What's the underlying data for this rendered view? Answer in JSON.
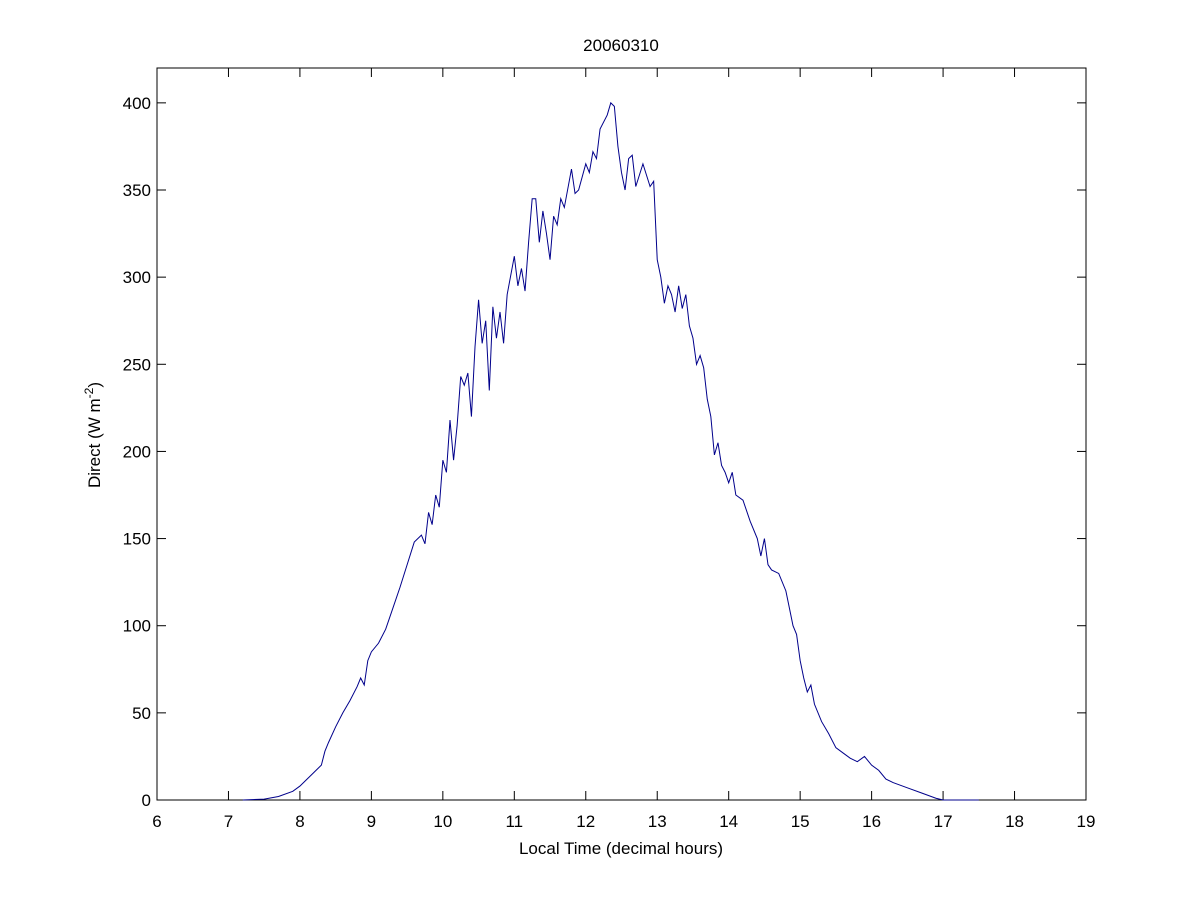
{
  "chart_data": {
    "type": "line",
    "title": "20060310",
    "xlabel": "Local Time (decimal hours)",
    "ylabel": {
      "base": "Direct (W m",
      "superscript": "-2",
      "suffix": ")"
    },
    "xlim": [
      6,
      19
    ],
    "xticks": [
      6,
      7,
      8,
      9,
      10,
      11,
      12,
      13,
      14,
      15,
      16,
      17,
      18,
      19
    ],
    "ylim": [
      0,
      420
    ],
    "yticks": [
      0,
      50,
      100,
      150,
      200,
      250,
      300,
      350,
      400
    ],
    "grid": false,
    "series": [
      {
        "color": "#00008b",
        "x": [
          7.2,
          7.5,
          7.7,
          7.9,
          8.0,
          8.1,
          8.2,
          8.3,
          8.35,
          8.4,
          8.5,
          8.6,
          8.7,
          8.8,
          8.85,
          8.9,
          8.95,
          9.0,
          9.1,
          9.2,
          9.3,
          9.4,
          9.5,
          9.6,
          9.7,
          9.75,
          9.8,
          9.85,
          9.9,
          9.95,
          10.0,
          10.05,
          10.1,
          10.15,
          10.2,
          10.25,
          10.3,
          10.35,
          10.4,
          10.45,
          10.5,
          10.55,
          10.6,
          10.65,
          10.7,
          10.75,
          10.8,
          10.85,
          10.9,
          11.0,
          11.05,
          11.1,
          11.15,
          11.2,
          11.25,
          11.3,
          11.35,
          11.4,
          11.45,
          11.5,
          11.55,
          11.6,
          11.65,
          11.7,
          11.8,
          11.85,
          11.9,
          12.0,
          12.05,
          12.1,
          12.15,
          12.2,
          12.3,
          12.35,
          12.4,
          12.45,
          12.5,
          12.55,
          12.6,
          12.65,
          12.7,
          12.8,
          12.9,
          12.95,
          13.0,
          13.05,
          13.1,
          13.15,
          13.2,
          13.25,
          13.3,
          13.35,
          13.4,
          13.45,
          13.5,
          13.55,
          13.6,
          13.65,
          13.7,
          13.75,
          13.8,
          13.85,
          13.9,
          13.95,
          14.0,
          14.05,
          14.1,
          14.2,
          14.3,
          14.4,
          14.45,
          14.5,
          14.55,
          14.6,
          14.7,
          14.8,
          14.85,
          14.9,
          14.95,
          15.0,
          15.05,
          15.1,
          15.15,
          15.2,
          15.3,
          15.4,
          15.5,
          15.6,
          15.7,
          15.8,
          15.9,
          16.0,
          16.1,
          16.2,
          16.3,
          16.5,
          16.7,
          16.9,
          17.0,
          17.5
        ],
        "values": [
          0,
          0.5,
          2,
          5,
          8,
          12,
          16,
          20,
          28,
          33,
          42,
          50,
          57,
          65,
          70,
          66,
          80,
          85,
          90,
          98,
          110,
          122,
          135,
          148,
          152,
          147,
          165,
          158,
          175,
          168,
          195,
          188,
          218,
          195,
          215,
          243,
          238,
          245,
          220,
          260,
          287,
          262,
          275,
          235,
          283,
          265,
          280,
          262,
          290,
          312,
          295,
          305,
          292,
          320,
          345,
          345,
          320,
          338,
          325,
          310,
          335,
          330,
          345,
          340,
          362,
          348,
          350,
          365,
          360,
          372,
          368,
          385,
          393,
          400,
          398,
          375,
          360,
          350,
          368,
          370,
          352,
          365,
          352,
          355,
          310,
          300,
          285,
          295,
          290,
          280,
          295,
          282,
          290,
          272,
          265,
          250,
          255,
          248,
          230,
          220,
          198,
          205,
          192,
          188,
          182,
          188,
          175,
          172,
          160,
          150,
          140,
          150,
          135,
          132,
          130,
          120,
          110,
          100,
          95,
          80,
          70,
          62,
          66,
          55,
          45,
          38,
          30,
          27,
          24,
          22,
          25,
          20,
          17,
          12,
          10,
          7,
          4,
          1,
          0,
          0
        ]
      }
    ]
  }
}
